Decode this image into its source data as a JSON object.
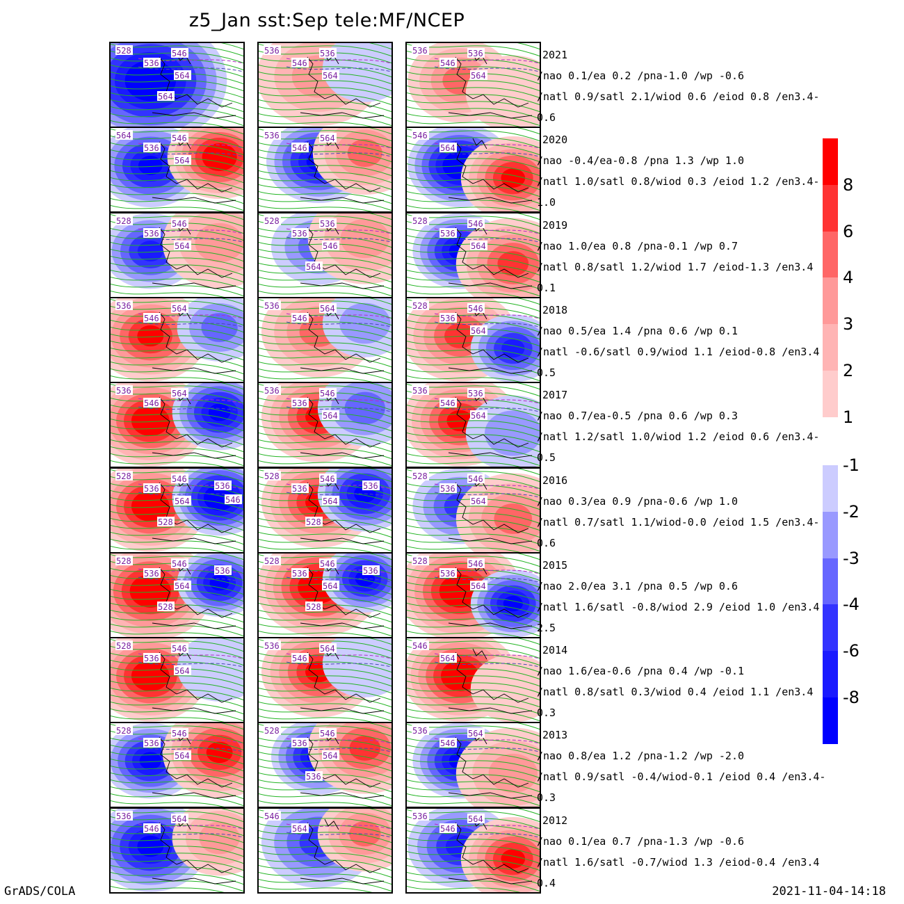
{
  "title": "z5_Jan sst:Sep tele:MF/NCEP",
  "footer_left": "GrADS/COLA",
  "footer_right": "2021-11-04-14:18",
  "chart_data": {
    "type": "heatmap",
    "title": "z5_Jan sst:Sep tele:MF/NCEP",
    "columns": 3,
    "contour_labels": [
      "528",
      "536",
      "546",
      "564"
    ],
    "colorbar": {
      "positive": [
        {
          "label": "8",
          "color": "#ff0000"
        },
        {
          "label": "6",
          "color": "#ff3333"
        },
        {
          "label": "4",
          "color": "#ff6666"
        },
        {
          "label": "3",
          "color": "#ff9999"
        },
        {
          "label": "2",
          "color": "#ffb4b4"
        },
        {
          "label": "1",
          "color": "#ffcccc"
        }
      ],
      "negative": [
        {
          "label": "-1",
          "color": "#ccccff"
        },
        {
          "label": "-2",
          "color": "#9999ff"
        },
        {
          "label": "-3",
          "color": "#6666ff"
        },
        {
          "label": "-4",
          "color": "#3333ff"
        },
        {
          "label": "-6",
          "color": "#1a1aff"
        },
        {
          "label": "-8",
          "color": "#0000ff"
        }
      ],
      "colors": {
        "pos": [
          "#ffcccc",
          "#ffb4b4",
          "#ff9999",
          "#ff6666",
          "#ff3333",
          "#ff0000",
          "#ff0000"
        ],
        "neg": [
          "#ccccff",
          "#9999ff",
          "#6666ff",
          "#3333ff",
          "#1a1aff",
          "#0000ff",
          "#0000ff"
        ]
      }
    },
    "rows": [
      {
        "year": "2021",
        "tele": "/nao  0.1/ea 0.2 /pna-1.0 /wp -0.6",
        "sst": "/natl  0.9/satl  2.1/wiod 0.6 /eiod 0.8 /en3.4-0.6",
        "panels": [
          {
            "labels": [
              "528",
              "536",
              "546",
              "564",
              "564"
            ],
            "anoms": [
              {
                "v": -7,
                "spread": 1
              }
            ]
          },
          {
            "labels": [
              "536",
              "546",
              "536",
              "564"
            ],
            "anoms": [
              {
                "v": 3,
                "spread": 0.7
              },
              {
                "v": -1,
                "spread": 0.3
              }
            ]
          },
          {
            "labels": [
              "536",
              "546",
              "536",
              "564"
            ],
            "anoms": [
              {
                "v": 4,
                "spread": 0.5
              },
              {
                "v": 1,
                "spread": 0.4
              }
            ]
          }
        ]
      },
      {
        "year": "2020",
        "tele": "/nao -0.4/ea-0.8 /pna 1.3 /wp  1.0",
        "sst": "/natl  1.0/satl  0.8/wiod 0.3 /eiod 1.2 /en3.4-1.0",
        "panels": [
          {
            "labels": [
              "564",
              "536",
              "546",
              "564"
            ],
            "anoms": [
              {
                "v": -6,
                "spread": 0.5
              },
              {
                "v": 7,
                "spread": 0.5
              }
            ]
          },
          {
            "labels": [
              "536",
              "546",
              "564"
            ],
            "anoms": [
              {
                "v": -6,
                "spread": 0.5
              },
              {
                "v": 4,
                "spread": 0.5
              }
            ]
          },
          {
            "labels": [
              "546",
              "564"
            ],
            "anoms": [
              {
                "v": -7,
                "spread": 0.5
              },
              {
                "v": 6,
                "spread": 0.5
              }
            ]
          }
        ]
      },
      {
        "year": "2019",
        "tele": "/nao  1.0/ea 0.8 /pna-0.1 /wp  0.7",
        "sst": "/natl  0.8/satl  1.2/wiod 1.7 /eiod-1.3 /en3.4 0.1",
        "panels": [
          {
            "labels": [
              "528",
              "536",
              "546",
              "564"
            ],
            "anoms": [
              {
                "v": -5,
                "spread": 0.4
              },
              {
                "v": 3,
                "spread": 0.6
              }
            ]
          },
          {
            "labels": [
              "528",
              "536",
              "536",
              "546",
              "564"
            ],
            "anoms": [
              {
                "v": -3,
                "spread": 0.4
              },
              {
                "v": 3,
                "spread": 0.6
              }
            ]
          },
          {
            "labels": [
              "528",
              "536",
              "546",
              "564"
            ],
            "anoms": [
              {
                "v": -6,
                "spread": 0.4
              },
              {
                "v": 5,
                "spread": 0.6
              }
            ]
          }
        ]
      },
      {
        "year": "2018",
        "tele": "/nao  0.5/ea 1.4 /pna 0.6 /wp  0.1",
        "sst": "/natl -0.6/satl  0.9/wiod 1.1 /eiod-0.8 /en3.4 0.5",
        "panels": [
          {
            "labels": [
              "536",
              "546",
              "564"
            ],
            "anoms": [
              {
                "v": 6,
                "spread": 0.6
              },
              {
                "v": -3,
                "spread": 0.3
              }
            ]
          },
          {
            "labels": [
              "536",
              "546",
              "564"
            ],
            "anoms": [
              {
                "v": 4,
                "spread": 0.6
              },
              {
                "v": -2,
                "spread": 0.3
              }
            ]
          },
          {
            "labels": [
              "528",
              "536",
              "546",
              "564"
            ],
            "anoms": [
              {
                "v": 5,
                "spread": 0.6
              },
              {
                "v": -5,
                "spread": 0.3
              }
            ]
          }
        ]
      },
      {
        "year": "2017",
        "tele": "/nao  0.7/ea-0.5 /pna 0.6 /wp  0.3",
        "sst": "/natl  1.2/satl  1.0/wiod 1.2 /eiod 0.6 /en3.4-0.5",
        "panels": [
          {
            "labels": [
              "536",
              "546",
              "564"
            ],
            "anoms": [
              {
                "v": 7,
                "spread": 0.6
              },
              {
                "v": -6,
                "spread": 0.4
              }
            ]
          },
          {
            "labels": [
              "536",
              "536",
              "546",
              "564"
            ],
            "anoms": [
              {
                "v": 6,
                "spread": 0.6
              },
              {
                "v": -3,
                "spread": 0.4
              }
            ]
          },
          {
            "labels": [
              "536",
              "546",
              "536",
              "564"
            ],
            "anoms": [
              {
                "v": 6,
                "spread": 0.6
              },
              {
                "v": -2,
                "spread": 0.4
              }
            ]
          }
        ]
      },
      {
        "year": "2016",
        "tele": "/nao  0.3/ea 0.9 /pna-0.6 /wp  1.0",
        "sst": "/natl  0.7/satl  1.1/wiod-0.0 /eiod 1.5 /en3.4-0.6",
        "panels": [
          {
            "labels": [
              "528",
              "536",
              "546",
              "564",
              "528",
              "536",
              "546"
            ],
            "anoms": [
              {
                "v": 7,
                "spread": 0.6
              },
              {
                "v": -7,
                "spread": 0.4
              }
            ]
          },
          {
            "labels": [
              "528",
              "536",
              "546",
              "564",
              "528",
              "536"
            ],
            "anoms": [
              {
                "v": 6,
                "spread": 0.6
              },
              {
                "v": -6,
                "spread": 0.4
              }
            ]
          },
          {
            "labels": [
              "528",
              "536",
              "546",
              "564"
            ],
            "anoms": [
              {
                "v": -4,
                "spread": 0.4
              },
              {
                "v": 4,
                "spread": 0.6
              }
            ]
          }
        ]
      },
      {
        "year": "2015",
        "tele": "/nao  2.0/ea 3.1 /pna 0.5 /wp  0.6",
        "sst": "/natl  1.6/satl -0.8/wiod 2.9 /eiod 1.0 /en3.4 2.5",
        "panels": [
          {
            "labels": [
              "528",
              "536",
              "546",
              "564",
              "528",
              "536"
            ],
            "anoms": [
              {
                "v": 8,
                "spread": 0.7
              },
              {
                "v": -6,
                "spread": 0.3
              }
            ]
          },
          {
            "labels": [
              "528",
              "536",
              "546",
              "564",
              "528",
              "536"
            ],
            "anoms": [
              {
                "v": 8,
                "spread": 0.7
              },
              {
                "v": -6,
                "spread": 0.3
              }
            ]
          },
          {
            "labels": [
              "528",
              "536",
              "546",
              "564"
            ],
            "anoms": [
              {
                "v": 8,
                "spread": 0.7
              },
              {
                "v": -6,
                "spread": 0.3
              }
            ]
          }
        ]
      },
      {
        "year": "2014",
        "tele": "/nao  1.6/ea-0.6 /pna 0.4 /wp -0.1",
        "sst": "/natl  0.8/satl  0.3/wiod 0.4 /eiod 1.1 /en3.4 0.3",
        "panels": [
          {
            "labels": [
              "528",
              "536",
              "546",
              "564"
            ],
            "anoms": [
              {
                "v": 7,
                "spread": 0.6
              },
              {
                "v": -1,
                "spread": 0.3
              }
            ]
          },
          {
            "labels": [
              "536",
              "546",
              "564"
            ],
            "anoms": [
              {
                "v": 6,
                "spread": 0.6
              },
              {
                "v": -1,
                "spread": 0.3
              }
            ]
          },
          {
            "labels": [
              "546",
              "564"
            ],
            "anoms": [
              {
                "v": 7,
                "spread": 0.6
              },
              {
                "v": 1,
                "spread": 0.3
              }
            ]
          }
        ]
      },
      {
        "year": "2013",
        "tele": "/nao  0.8/ea 1.2 /pna-1.2 /wp -2.0",
        "sst": "/natl  0.9/satl -0.4/wiod-0.1 /eiod 0.4 /en3.4-0.3",
        "panels": [
          {
            "labels": [
              "528",
              "536",
              "546",
              "564"
            ],
            "anoms": [
              {
                "v": -6,
                "spread": 0.4
              },
              {
                "v": 6,
                "spread": 0.6
              }
            ]
          },
          {
            "labels": [
              "528",
              "536",
              "546",
              "564",
              "536"
            ],
            "anoms": [
              {
                "v": -6,
                "spread": 0.4
              },
              {
                "v": 5,
                "spread": 0.6
              }
            ]
          },
          {
            "labels": [
              "536",
              "546",
              "564"
            ],
            "anoms": [
              {
                "v": -6,
                "spread": 0.4
              },
              {
                "v": 3,
                "spread": 0.6
              }
            ]
          }
        ]
      },
      {
        "year": "2012",
        "tele": "/nao  0.1/ea 0.7 /pna-1.3 /wp -0.6",
        "sst": "/natl  1.6/satl -0.7/wiod 1.3 /eiod-0.4 /en3.4 0.4",
        "panels": [
          {
            "labels": [
              "536",
              "546",
              "564"
            ],
            "anoms": [
              {
                "v": -6,
                "spread": 0.6
              },
              {
                "v": 3,
                "spread": 0.4
              }
            ]
          },
          {
            "labels": [
              "546",
              "564"
            ],
            "anoms": [
              {
                "v": -4,
                "spread": 0.6
              },
              {
                "v": 4,
                "spread": 0.4
              }
            ]
          },
          {
            "labels": [
              "536",
              "546",
              "564"
            ],
            "anoms": [
              {
                "v": -5,
                "spread": 0.5
              },
              {
                "v": 6,
                "spread": 0.5
              }
            ]
          }
        ]
      }
    ]
  }
}
